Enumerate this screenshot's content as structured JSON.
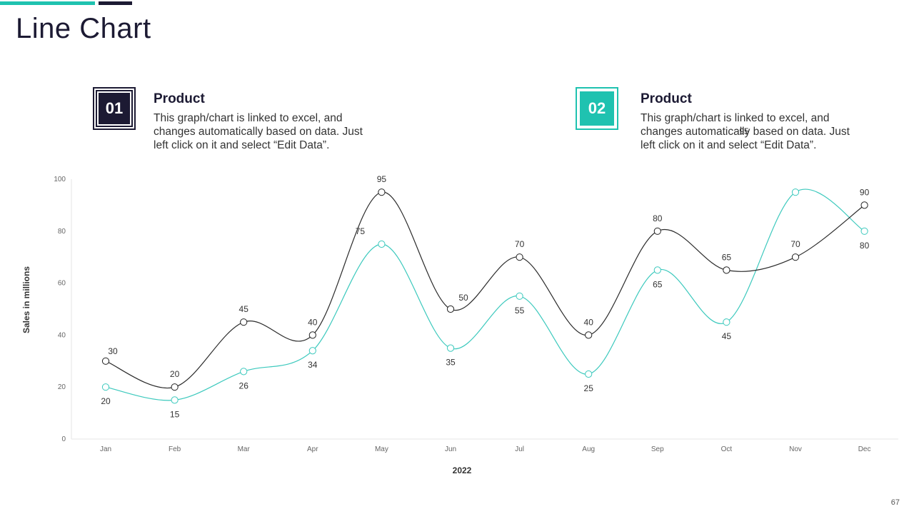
{
  "page": {
    "title": "Line Chart",
    "page_number": "67"
  },
  "cards": [
    {
      "badge": "01",
      "heading": "Product",
      "text": "This graph/chart is linked to excel, and changes automatically based on data. Just left click on it and select “Edit Data”."
    },
    {
      "badge": "02",
      "heading": "Product",
      "text": "This graph/chart is linked to excel, and changes automatically based on data. Just left click on it and select “Edit Data”."
    }
  ],
  "colors": {
    "dark": "#1c1a33",
    "teal": "#1fc2b0",
    "series_dark_line": "#2b2b2b",
    "series_teal_line": "#3cc9bd"
  },
  "chart_data": {
    "type": "line",
    "xlabel": "2022",
    "ylabel": "Sales in millions",
    "ylim": [
      0,
      100
    ],
    "yticks": [
      0,
      20,
      40,
      60,
      80,
      100
    ],
    "grid": false,
    "categories": [
      "Jan",
      "Feb",
      "Mar",
      "Apr",
      "May",
      "Jun",
      "Jul",
      "Aug",
      "Sep",
      "Oct",
      "Nov",
      "Dec"
    ],
    "series": [
      {
        "values": [
          30,
          20,
          45,
          40,
          95,
          50,
          70,
          40,
          80,
          65,
          70,
          90
        ]
      },
      {
        "values": [
          20,
          15,
          26,
          34,
          75,
          35,
          55,
          25,
          65,
          45,
          95,
          80
        ]
      }
    ]
  }
}
